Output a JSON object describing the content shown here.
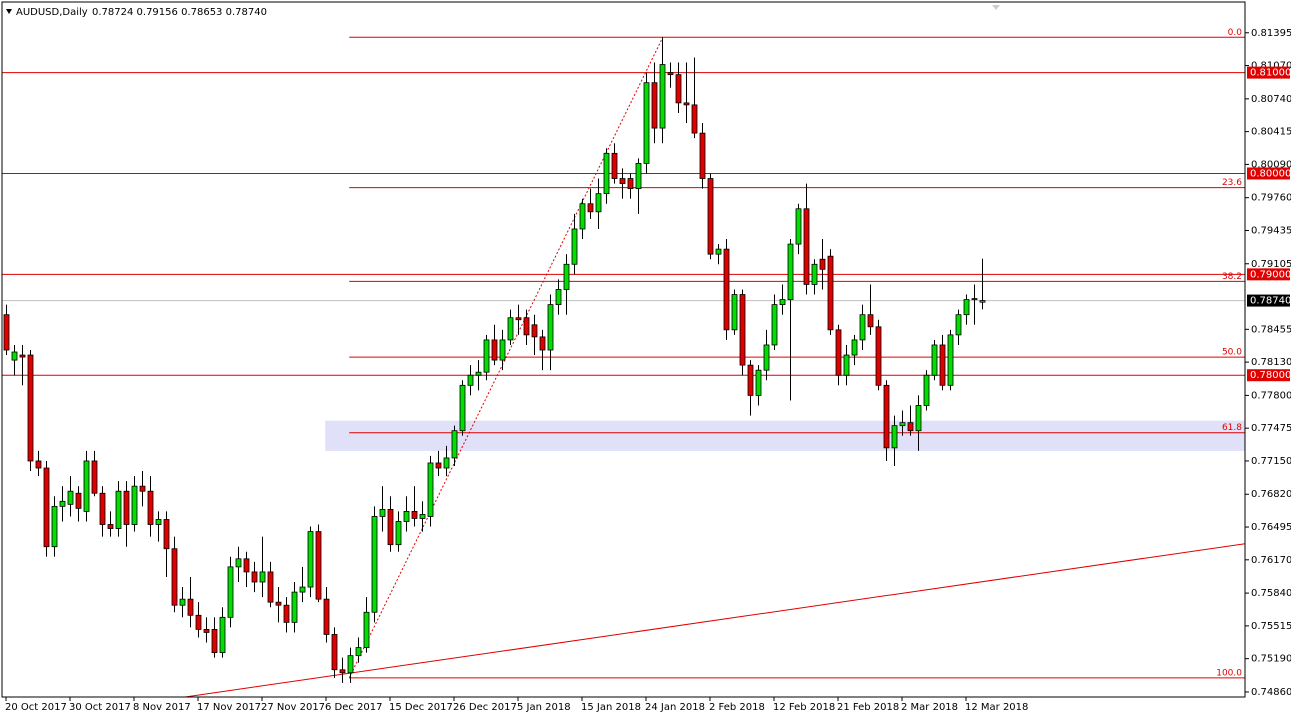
{
  "header": {
    "symbol": "AUDUSD,Daily",
    "ohlc": "0.78724 0.79156 0.78653 0.78740"
  },
  "chart_data": {
    "type": "candlestick",
    "categories": [
      "20 Oct 2017",
      null,
      null,
      null,
      null,
      null,
      null,
      null,
      "30 Oct 2017",
      null,
      null,
      null,
      null,
      null,
      null,
      null,
      "8 Nov 2017",
      null,
      null,
      null,
      null,
      null,
      null,
      null,
      "17 Nov 2017",
      null,
      null,
      null,
      null,
      null,
      null,
      null,
      "27 Nov 2017",
      null,
      null,
      null,
      null,
      null,
      null,
      null,
      "6 Dec 2017",
      null,
      null,
      null,
      null,
      null,
      null,
      null,
      "15 Dec 2017",
      null,
      null,
      null,
      null,
      null,
      null,
      null,
      "26 Dec 2017",
      null,
      null,
      null,
      null,
      null,
      null,
      null,
      "5 Jan 2018",
      null,
      null,
      null,
      null,
      null,
      null,
      null,
      "15 Jan 2018",
      null,
      null,
      null,
      null,
      null,
      null,
      null,
      "24 Jan 2018",
      null,
      null,
      null,
      null,
      null,
      null,
      null,
      "2 Feb 2018",
      null,
      null,
      null,
      null,
      null,
      null,
      null,
      "12 Feb 2018",
      null,
      null,
      null,
      null,
      null,
      null,
      null,
      "21 Feb 2018",
      null,
      null,
      null,
      null,
      null,
      null,
      null,
      "2 Mar 2018",
      null,
      null,
      null,
      null,
      null,
      null,
      null,
      "12 Mar 2018",
      null,
      null
    ],
    "open": [
      0.786,
      0.7815,
      0.782,
      0.782,
      0.7715,
      0.7708,
      0.763,
      0.767,
      0.7672,
      0.7683,
      0.7665,
      0.7715,
      0.7683,
      0.7652,
      0.7648,
      0.7685,
      0.7652,
      0.769,
      0.7685,
      0.7652,
      0.7657,
      0.7628,
      0.7572,
      0.7578,
      0.7562,
      0.7548,
      0.7548,
      0.7525,
      0.756,
      0.761,
      0.7618,
      0.7605,
      0.7595,
      0.7605,
      0.7575,
      0.7572,
      0.7555,
      0.7585,
      0.759,
      0.7645,
      0.7578,
      0.7543,
      0.7508,
      0.7505,
      0.7522,
      0.753,
      0.7565,
      0.766,
      0.7667,
      0.7632,
      0.7655,
      0.7665,
      0.7658,
      0.766,
      0.7713,
      0.7708,
      0.7718,
      0.7745,
      0.779,
      0.78,
      0.7803,
      0.7835,
      0.7815,
      0.7835,
      0.7857,
      0.7857,
      0.785,
      0.7838,
      0.7825,
      0.787,
      0.7885,
      0.791,
      0.7945,
      0.797,
      0.7962,
      0.798,
      0.802,
      0.7995,
      0.7995,
      0.7985,
      0.801,
      0.809,
      0.8045,
      0.81,
      0.8098,
      0.807,
      0.8068,
      0.804,
      0.7995,
      0.792,
      0.7925,
      0.7845,
      0.788,
      0.781,
      0.778,
      0.7805,
      0.783,
      0.787,
      0.7875,
      0.793,
      0.7965,
      0.789,
      0.7915,
      0.7918,
      0.7845,
      0.78,
      0.782,
      0.7835,
      0.786,
      0.7848,
      0.779,
      0.7728,
      0.775,
      0.7753,
      0.7745,
      0.777,
      0.78,
      0.783,
      0.779,
      0.784,
      0.786,
      0.7875,
      0.78724
    ],
    "high": [
      0.787,
      0.783,
      0.783,
      0.7825,
      0.7725,
      0.7715,
      0.768,
      0.769,
      0.77,
      0.769,
      0.7725,
      0.7725,
      0.769,
      0.7665,
      0.7695,
      0.7695,
      0.77,
      0.7705,
      0.77,
      0.7665,
      0.7665,
      0.764,
      0.759,
      0.76,
      0.7575,
      0.756,
      0.756,
      0.757,
      0.762,
      0.763,
      0.7625,
      0.7615,
      0.764,
      0.7615,
      0.759,
      0.758,
      0.7595,
      0.761,
      0.765,
      0.7652,
      0.759,
      0.755,
      0.752,
      0.753,
      0.754,
      0.758,
      0.767,
      0.769,
      0.768,
      0.7665,
      0.768,
      0.769,
      0.7675,
      0.772,
      0.7725,
      0.773,
      0.775,
      0.7795,
      0.781,
      0.7815,
      0.784,
      0.785,
      0.7845,
      0.7865,
      0.787,
      0.7865,
      0.786,
      0.7845,
      0.788,
      0.7895,
      0.792,
      0.796,
      0.7975,
      0.7985,
      0.7995,
      0.8025,
      0.803,
      0.8005,
      0.8,
      0.8015,
      0.81,
      0.811,
      0.8135,
      0.811,
      0.811,
      0.811,
      0.8115,
      0.805,
      0.8,
      0.793,
      0.7935,
      0.7885,
      0.7885,
      0.7815,
      0.781,
      0.7845,
      0.788,
      0.789,
      0.7935,
      0.797,
      0.799,
      0.7915,
      0.7935,
      0.7925,
      0.785,
      0.783,
      0.784,
      0.787,
      0.789,
      0.7855,
      0.7795,
      0.776,
      0.7765,
      0.777,
      0.778,
      0.7805,
      0.7835,
      0.784,
      0.7845,
      0.7865,
      0.788,
      0.789,
      0.79156
    ],
    "low": [
      0.782,
      0.78,
      0.779,
      0.7705,
      0.77,
      0.762,
      0.762,
      0.7655,
      0.766,
      0.7655,
      0.7655,
      0.768,
      0.764,
      0.764,
      0.764,
      0.763,
      0.7645,
      0.767,
      0.764,
      0.7635,
      0.76,
      0.7565,
      0.756,
      0.755,
      0.754,
      0.7535,
      0.752,
      0.752,
      0.755,
      0.7595,
      0.759,
      0.7585,
      0.758,
      0.757,
      0.7555,
      0.7545,
      0.7545,
      0.7575,
      0.758,
      0.7575,
      0.7535,
      0.75,
      0.7495,
      0.7495,
      0.7515,
      0.7525,
      0.7555,
      0.7645,
      0.7625,
      0.7625,
      0.7645,
      0.765,
      0.7645,
      0.765,
      0.77,
      0.77,
      0.771,
      0.774,
      0.778,
      0.7785,
      0.7795,
      0.781,
      0.7805,
      0.783,
      0.784,
      0.783,
      0.782,
      0.7805,
      0.7805,
      0.786,
      0.786,
      0.79,
      0.7935,
      0.7955,
      0.7945,
      0.797,
      0.799,
      0.7975,
      0.7975,
      0.796,
      0.8,
      0.803,
      0.803,
      0.8085,
      0.806,
      0.805,
      0.8035,
      0.7985,
      0.7915,
      0.791,
      0.7835,
      0.784,
      0.78,
      0.776,
      0.777,
      0.7795,
      0.7825,
      0.786,
      0.7775,
      0.792,
      0.788,
      0.788,
      0.7885,
      0.784,
      0.779,
      0.779,
      0.781,
      0.7825,
      0.784,
      0.7785,
      0.7715,
      0.771,
      0.774,
      0.774,
      0.7725,
      0.7765,
      0.7795,
      0.7785,
      0.7785,
      0.783,
      0.785,
      0.785,
      0.78653
    ],
    "close": [
      0.7825,
      0.7823,
      0.7818,
      0.7715,
      0.7708,
      0.763,
      0.767,
      0.7675,
      0.7685,
      0.7668,
      0.7715,
      0.7683,
      0.7652,
      0.7648,
      0.7685,
      0.7652,
      0.769,
      0.7685,
      0.7652,
      0.7657,
      0.7628,
      0.7572,
      0.7578,
      0.7562,
      0.7548,
      0.7545,
      0.7525,
      0.756,
      0.761,
      0.7618,
      0.7605,
      0.7595,
      0.7605,
      0.7575,
      0.7572,
      0.7555,
      0.7585,
      0.759,
      0.7645,
      0.7578,
      0.7543,
      0.7508,
      0.7505,
      0.7522,
      0.753,
      0.7565,
      0.766,
      0.7667,
      0.7632,
      0.7655,
      0.7665,
      0.7658,
      0.7662,
      0.7713,
      0.7708,
      0.7718,
      0.7745,
      0.779,
      0.78,
      0.7803,
      0.7835,
      0.7815,
      0.7835,
      0.7857,
      0.7855,
      0.784,
      0.7838,
      0.7825,
      0.787,
      0.7885,
      0.791,
      0.7945,
      0.797,
      0.7962,
      0.798,
      0.802,
      0.7995,
      0.799,
      0.7985,
      0.801,
      0.809,
      0.8045,
      0.8108,
      0.8098,
      0.807,
      0.8068,
      0.804,
      0.7995,
      0.792,
      0.7925,
      0.7845,
      0.788,
      0.781,
      0.778,
      0.7805,
      0.783,
      0.787,
      0.7875,
      0.793,
      0.7965,
      0.789,
      0.791,
      0.7905,
      0.7845,
      0.78,
      0.782,
      0.7835,
      0.786,
      0.7848,
      0.779,
      0.7728,
      0.775,
      0.7753,
      0.7745,
      0.777,
      0.78,
      0.783,
      0.779,
      0.784,
      0.786,
      0.7875,
      0.7876,
      0.7874
    ],
    "up_color": "#00e000",
    "down_color": "#e00000",
    "ylim": [
      0.7481,
      0.817
    ],
    "yticks": [
      0.81395,
      {
        "value": 0.8107,
        "label": "0.81070"
      },
      {
        "value": 0.8074,
        "label": "0.80740"
      },
      0.80415,
      {
        "value": 0.8009,
        "label": "0.80090"
      },
      {
        "value": 0.7976,
        "label": "0.79760"
      },
      0.79435,
      0.79105,
      0.78455,
      {
        "value": 0.7813,
        "label": "0.78130"
      },
      {
        "value": 0.778,
        "label": "0.77800"
      },
      0.77475,
      {
        "value": 0.7715,
        "label": "0.77150"
      },
      {
        "value": 0.7682,
        "label": "0.76820"
      },
      0.76495,
      {
        "value": 0.7617,
        "label": "0.76170"
      },
      {
        "value": 0.7584,
        "label": "0.75840"
      },
      0.75515,
      {
        "value": 0.7519,
        "label": "0.75190"
      },
      {
        "value": 0.7486,
        "label": "0.74860"
      }
    ],
    "levels": [
      {
        "value": 0.81,
        "label": "0.81000"
      },
      {
        "value": 0.8,
        "label": "0.80000"
      },
      {
        "value": 0.79,
        "label": "0.79000"
      },
      {
        "value": 0.78,
        "label": "0.78000"
      }
    ],
    "level_color": "#e00000",
    "current_price": {
      "value": 0.7874,
      "label": "0.78740"
    },
    "zone": {
      "x": 39.9,
      "y": [
        0.7725,
        0.7755
      ],
      "color": "#e0e0f8"
    },
    "fib": {
      "x": [
        42.9,
        82.1
      ],
      "y": [
        0.75,
        0.8135
      ],
      "levels": [
        {
          "value": 0.8135,
          "label": "0.0"
        },
        {
          "value": 0.7986,
          "label": "23.6"
        },
        {
          "value": 0.7893,
          "label": "38.2"
        },
        {
          "value": 0.7818,
          "label": "50.0"
        },
        {
          "value": 0.7743,
          "label": "61.8"
        },
        {
          "value": 0.75,
          "label": "100.0"
        }
      ]
    },
    "trendline": {
      "x": [
        22.4,
        154.9
      ],
      "y": [
        0.7481,
        0.7633
      ]
    }
  }
}
